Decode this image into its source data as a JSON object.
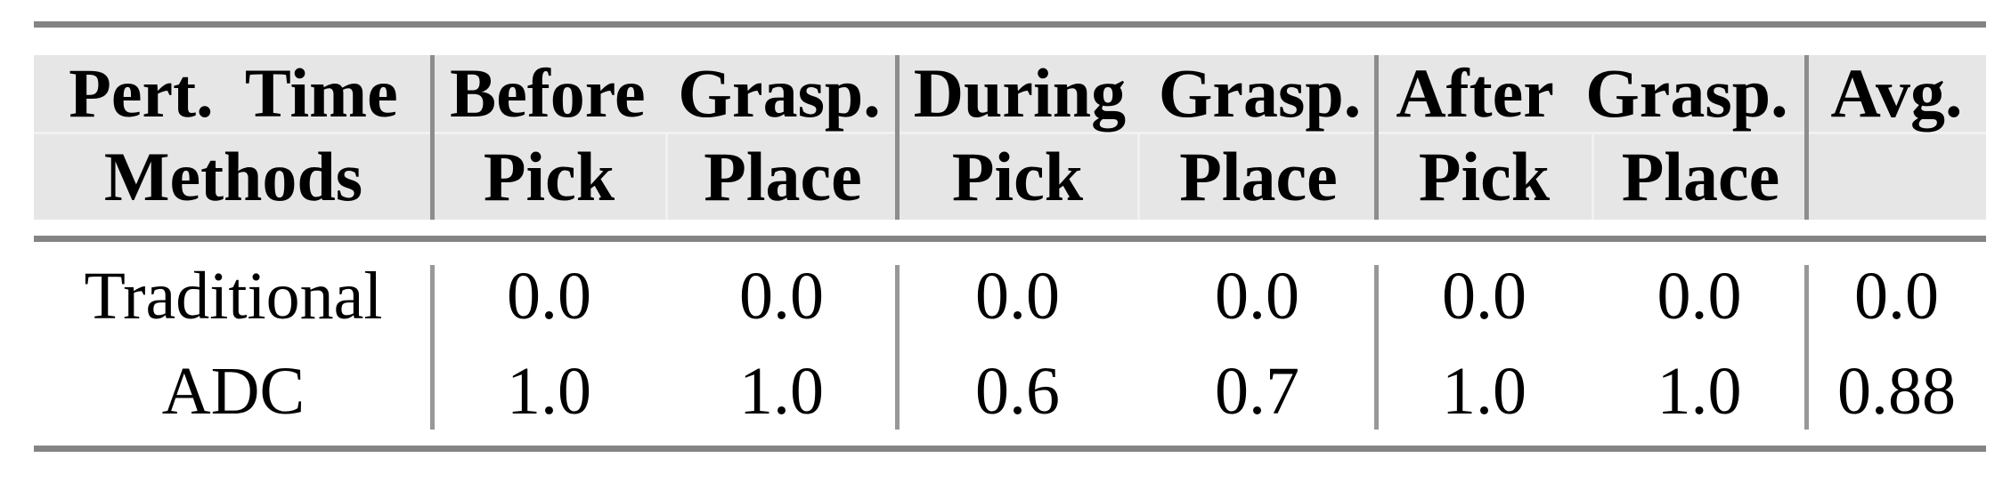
{
  "colors": {
    "header-bg": "#e6e6e6",
    "rule": "#848484",
    "divider": "#8d8d8d",
    "divider-body": "#989898",
    "faint-line": "#f1f1f1",
    "text": "#000000"
  },
  "table": {
    "corner": {
      "top": "Pert. Time",
      "bottom": "Methods"
    },
    "groups": [
      {
        "label": "Before Grasp.",
        "sub": [
          "Pick",
          "Place"
        ]
      },
      {
        "label": "During Grasp.",
        "sub": [
          "Pick",
          "Place"
        ]
      },
      {
        "label": "After Grasp.",
        "sub": [
          "Pick",
          "Place"
        ]
      }
    ],
    "avg_label": "Avg.",
    "rows": [
      {
        "method": "Traditional",
        "values": [
          "0.0",
          "0.0",
          "0.0",
          "0.0",
          "0.0",
          "0.0",
          "0.0"
        ]
      },
      {
        "method": "ADC",
        "values": [
          "1.0",
          "1.0",
          "0.6",
          "0.7",
          "1.0",
          "1.0",
          "0.88"
        ]
      }
    ]
  }
}
